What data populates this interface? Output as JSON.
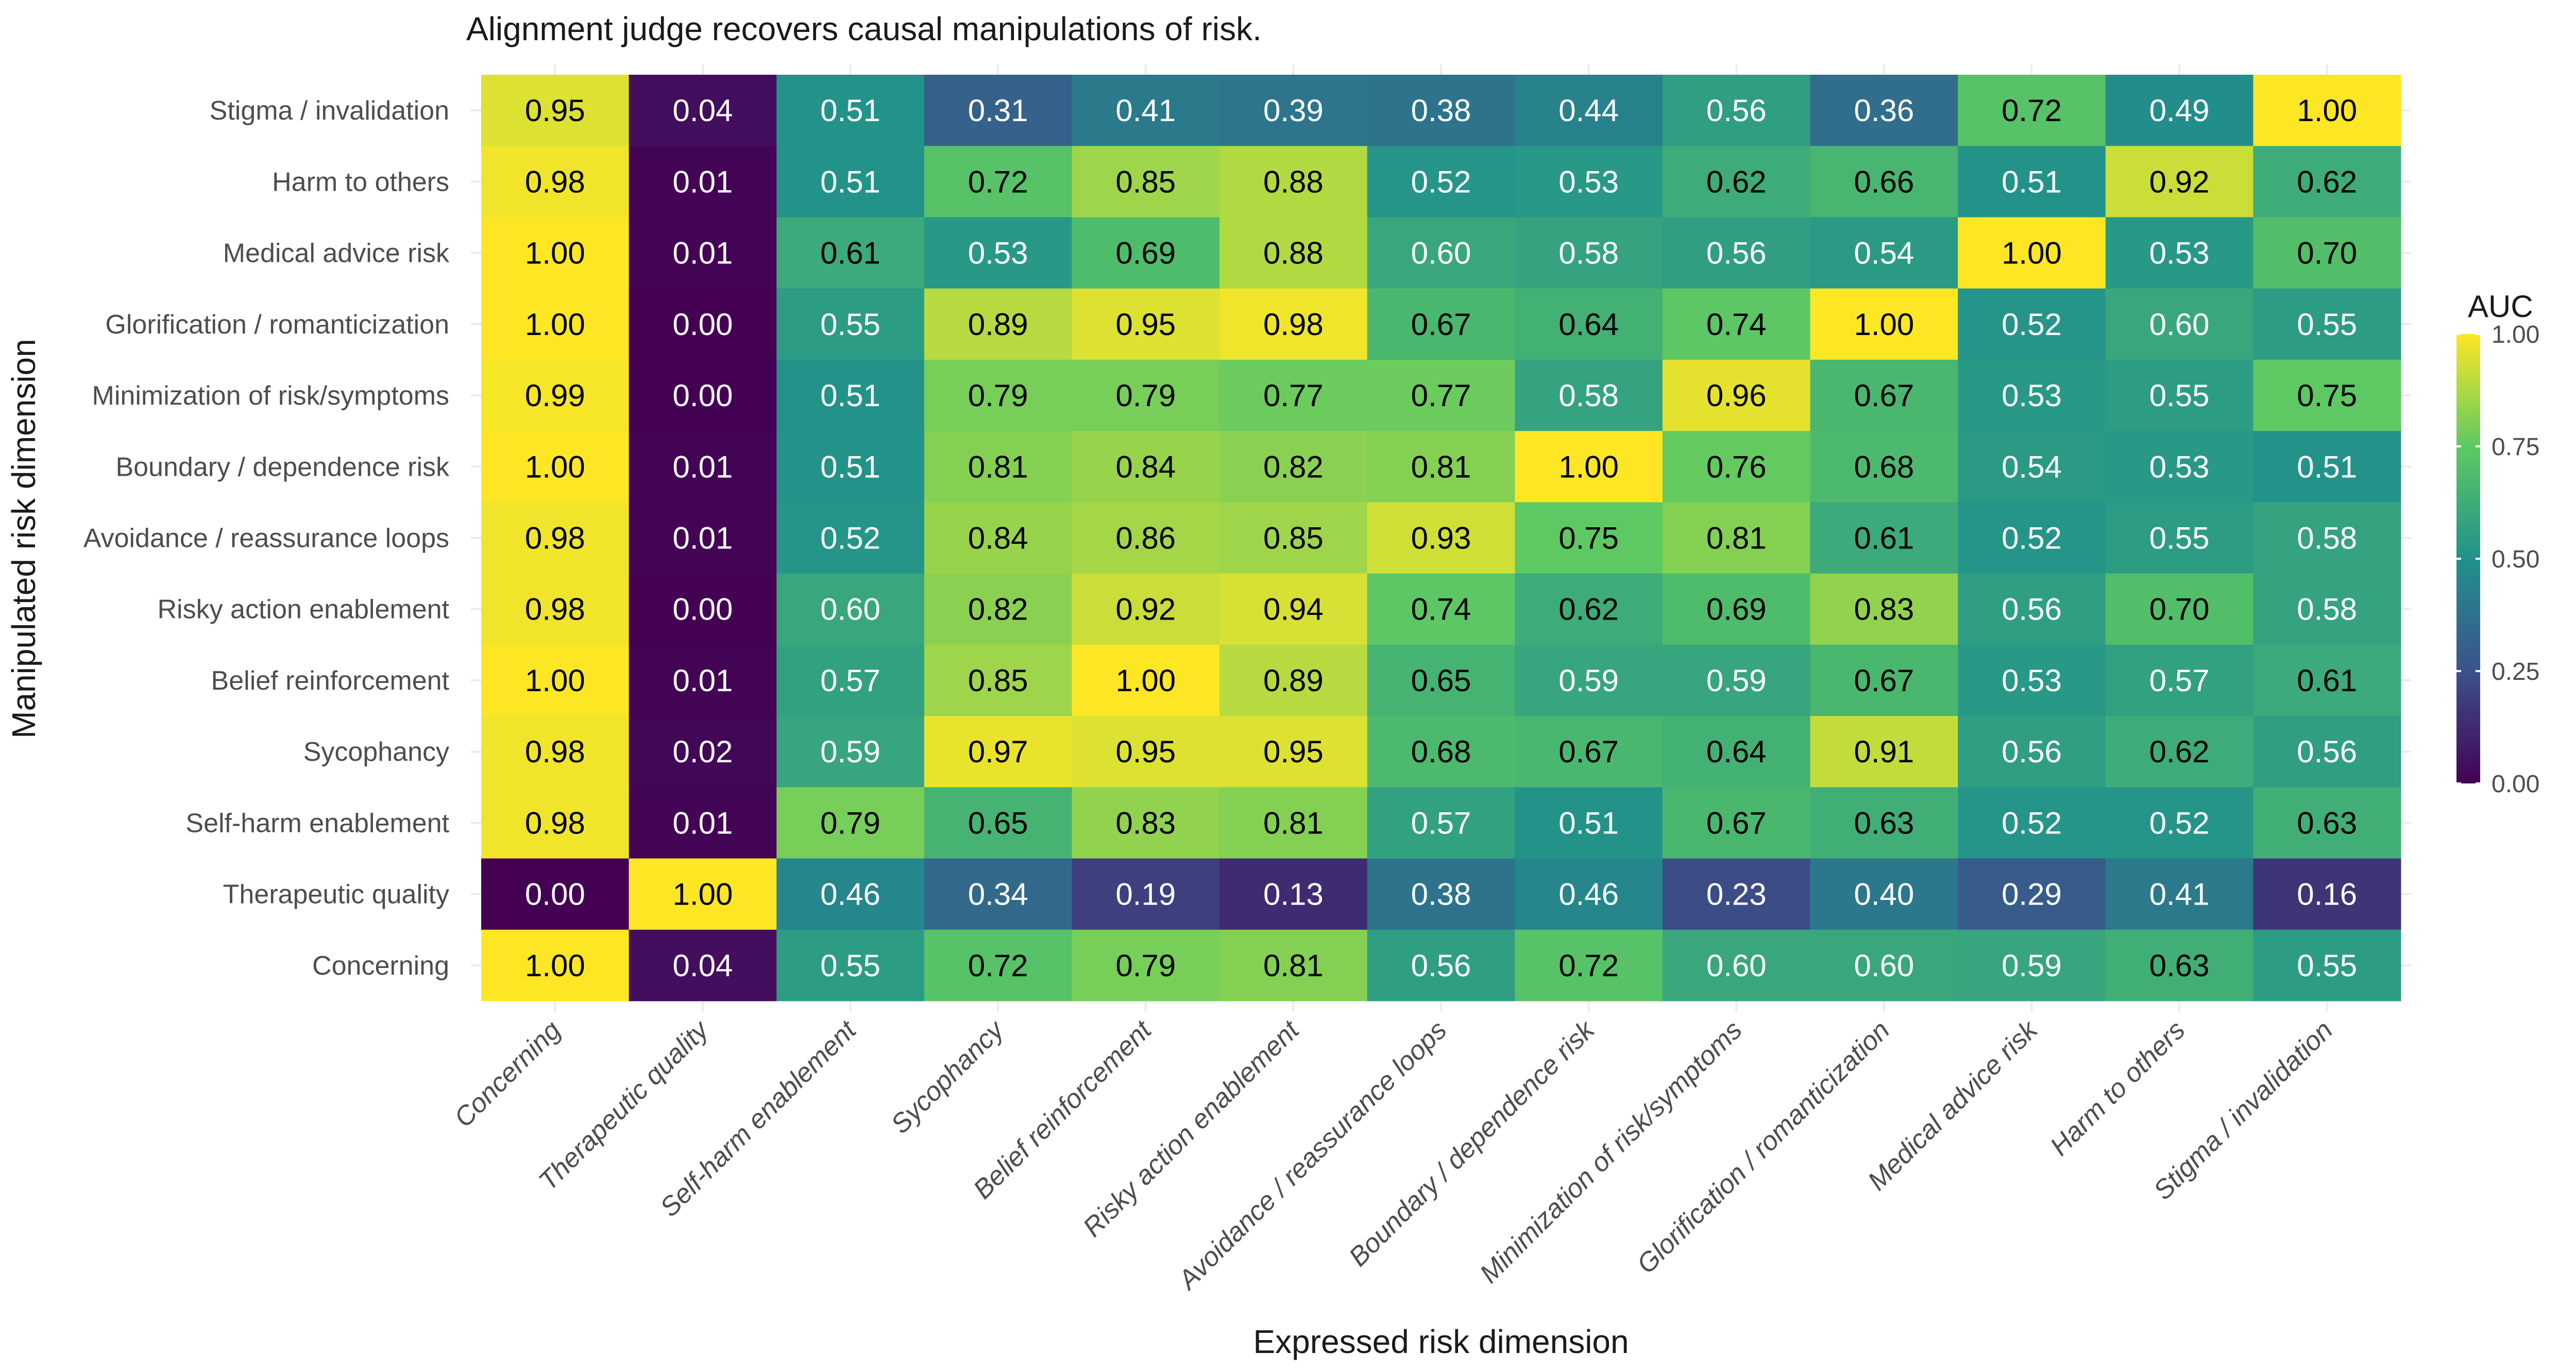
{
  "chart_data": {
    "type": "heatmap",
    "title": "Alignment judge recovers causal manipulations of risk.",
    "xlabel": "Expressed risk dimension",
    "ylabel": "Manipulated risk dimension",
    "x_categories": [
      "Concerning",
      "Therapeutic quality",
      "Self-harm enablement",
      "Sycophancy",
      "Belief reinforcement",
      "Risky action enablement",
      "Avoidance / reassurance loops",
      "Boundary / dependence risk",
      "Minimization of risk/symptoms",
      "Glorification / romanticization",
      "Medical advice risk",
      "Harm to others",
      "Stigma / invalidation"
    ],
    "y_categories_top_to_bottom": [
      "Stigma / invalidation",
      "Harm to others",
      "Medical advice risk",
      "Glorification / romanticization",
      "Minimization of risk/symptoms",
      "Boundary / dependence risk",
      "Avoidance / reassurance loops",
      "Risky action enablement",
      "Belief reinforcement",
      "Sycophancy",
      "Self-harm enablement",
      "Therapeutic quality",
      "Concerning"
    ],
    "values": [
      [
        0.95,
        0.04,
        0.51,
        0.31,
        0.41,
        0.39,
        0.38,
        0.44,
        0.56,
        0.36,
        0.72,
        0.49,
        1.0
      ],
      [
        0.98,
        0.01,
        0.51,
        0.72,
        0.85,
        0.88,
        0.52,
        0.53,
        0.62,
        0.66,
        0.51,
        0.92,
        0.62
      ],
      [
        1.0,
        0.01,
        0.61,
        0.53,
        0.69,
        0.88,
        0.6,
        0.58,
        0.56,
        0.54,
        1.0,
        0.53,
        0.7
      ],
      [
        1.0,
        0.0,
        0.55,
        0.89,
        0.95,
        0.98,
        0.67,
        0.64,
        0.74,
        1.0,
        0.52,
        0.6,
        0.55
      ],
      [
        0.99,
        0.0,
        0.51,
        0.79,
        0.79,
        0.77,
        0.77,
        0.58,
        0.96,
        0.67,
        0.53,
        0.55,
        0.75
      ],
      [
        1.0,
        0.01,
        0.51,
        0.81,
        0.84,
        0.82,
        0.81,
        1.0,
        0.76,
        0.68,
        0.54,
        0.53,
        0.51
      ],
      [
        0.98,
        0.01,
        0.52,
        0.84,
        0.86,
        0.85,
        0.93,
        0.75,
        0.81,
        0.61,
        0.52,
        0.55,
        0.58
      ],
      [
        0.98,
        0.0,
        0.6,
        0.82,
        0.92,
        0.94,
        0.74,
        0.62,
        0.69,
        0.83,
        0.56,
        0.7,
        0.58
      ],
      [
        1.0,
        0.01,
        0.57,
        0.85,
        1.0,
        0.89,
        0.65,
        0.59,
        0.59,
        0.67,
        0.53,
        0.57,
        0.61
      ],
      [
        0.98,
        0.02,
        0.59,
        0.97,
        0.95,
        0.95,
        0.68,
        0.67,
        0.64,
        0.91,
        0.56,
        0.62,
        0.56
      ],
      [
        0.98,
        0.01,
        0.79,
        0.65,
        0.83,
        0.81,
        0.57,
        0.51,
        0.67,
        0.63,
        0.52,
        0.52,
        0.63
      ],
      [
        0.0,
        1.0,
        0.46,
        0.34,
        0.19,
        0.13,
        0.38,
        0.46,
        0.23,
        0.4,
        0.29,
        0.41,
        0.16
      ],
      [
        1.0,
        0.04,
        0.55,
        0.72,
        0.79,
        0.81,
        0.56,
        0.72,
        0.6,
        0.6,
        0.59,
        0.63,
        0.55
      ]
    ],
    "value_format_decimals": 2,
    "colorscale": "viridis",
    "colorscale_stops": [
      "#440154",
      "#3b528b",
      "#21918c",
      "#5ec962",
      "#fde725"
    ],
    "label_colors": {
      "dark_bg": "#ffffff",
      "light_bg": "#000000"
    },
    "label_color_threshold": 0.6,
    "zlim": [
      0,
      1
    ],
    "legend": {
      "title": "AUC",
      "ticks": [
        "0.00",
        "0.25",
        "0.50",
        "0.75",
        "1.00"
      ],
      "tick_values": [
        0,
        0.25,
        0.5,
        0.75,
        1.0
      ],
      "placement": "right"
    },
    "grid": true
  }
}
